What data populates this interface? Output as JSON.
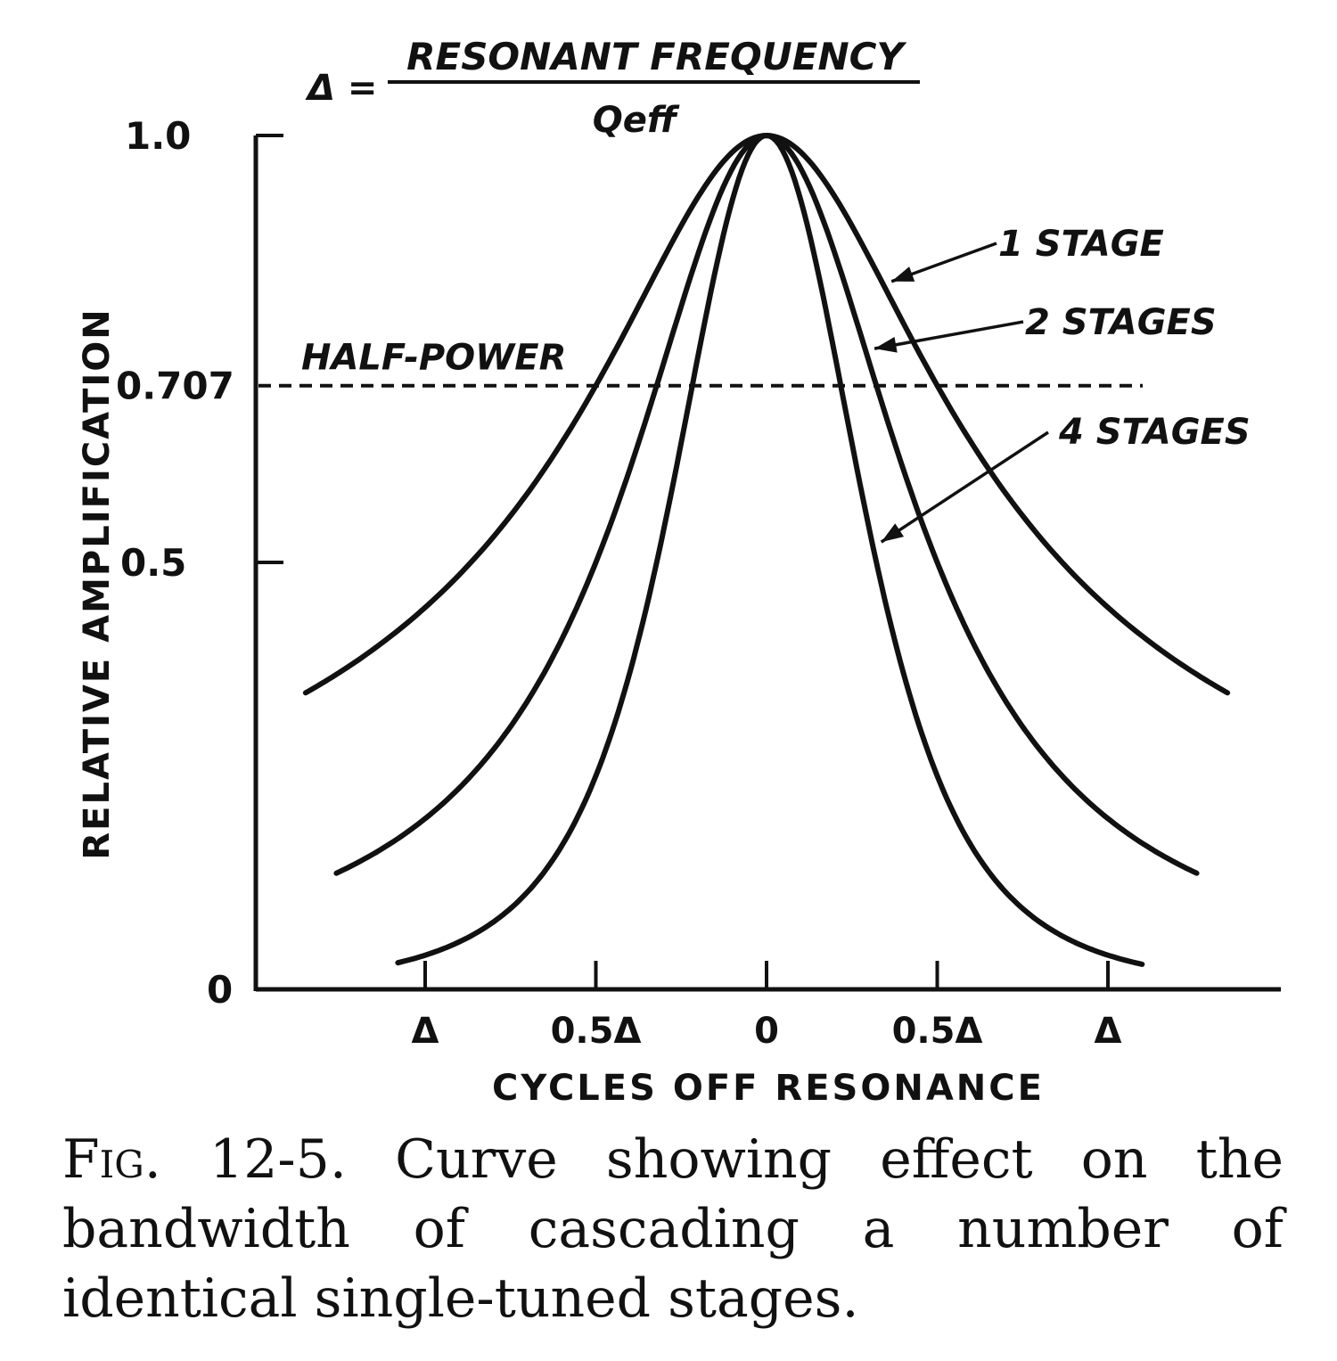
{
  "chart_data": {
    "type": "line",
    "formula": {
      "lhs": "Δ =",
      "numerator": "RESONANT FREQUENCY",
      "denominator": "Qeff"
    },
    "xlabel": "CYCLES OFF RESONANCE",
    "ylabel": "RELATIVE AMPLIFICATION",
    "xlim": [
      -1.95,
      1.95
    ],
    "ylim": [
      0,
      1.0
    ],
    "x_ticks": [
      {
        "value": -1.0,
        "label": "Δ"
      },
      {
        "value": -0.5,
        "label": "0.5Δ"
      },
      {
        "value": 0,
        "label": "0"
      },
      {
        "value": 0.5,
        "label": "0.5Δ"
      },
      {
        "value": 1.0,
        "label": "Δ"
      }
    ],
    "y_ticks": [
      {
        "value": 0,
        "label": "0"
      },
      {
        "value": 0.5,
        "label": "0.5"
      },
      {
        "value": 0.707,
        "label": "0.707"
      },
      {
        "value": 1.0,
        "label": "1.0"
      }
    ],
    "reference_line": {
      "y": 0.707,
      "label": "HALF-POWER",
      "style": "dashed"
    },
    "series": [
      {
        "name": "1 STAGE",
        "stages": 1,
        "x_range": [
          -1.35,
          1.35
        ]
      },
      {
        "name": "2 STAGES",
        "stages": 2,
        "x_range": [
          -1.26,
          1.26
        ]
      },
      {
        "name": "4 STAGES",
        "stages": 4,
        "x_range": [
          -1.08,
          1.1
        ]
      }
    ],
    "grid": false,
    "legend": "curve labels with arrows, right side"
  },
  "caption": {
    "fig_label": "Fig. 12-5.",
    "lines": [
      "Curve showing effect on the",
      "bandwidth of cascading a number of",
      "identical single-tuned stages."
    ]
  },
  "colors": {
    "ink": "#111111",
    "paper": "#ffffff"
  }
}
